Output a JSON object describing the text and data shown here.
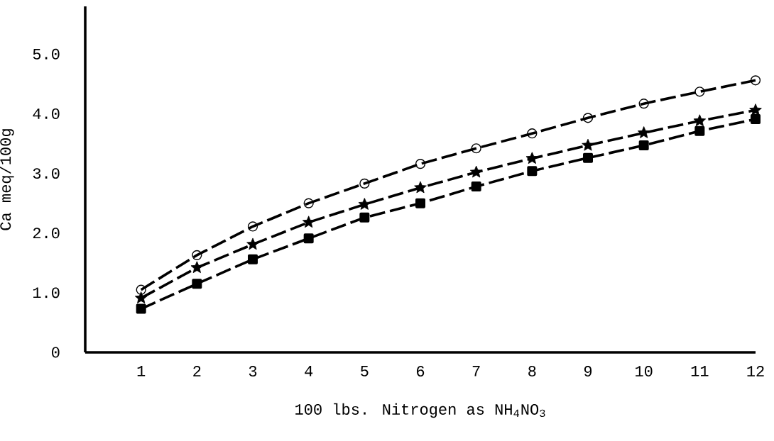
{
  "chart_data": {
    "type": "line",
    "xlabel": "100 lbs. Nitrogen as NH$_{4}$NO$_{3}$",
    "ylabel": "Ca meq/100g",
    "x": [
      1,
      2,
      3,
      4,
      5,
      6,
      7,
      8,
      9,
      10,
      11,
      12
    ],
    "xlim": [
      0,
      12
    ],
    "xticks": [
      1,
      2,
      3,
      4,
      5,
      6,
      7,
      8,
      9,
      10,
      11,
      12
    ],
    "ylim": [
      0,
      5.8
    ],
    "yticks": [
      0,
      {
        "value": 1,
        "label": "1.0"
      },
      {
        "value": 2,
        "label": "2.0"
      },
      {
        "value": 3,
        "label": "3.0"
      },
      {
        "value": 4,
        "label": "4.0"
      },
      {
        "value": 5,
        "label": "5.0"
      }
    ],
    "line_style": "dashed",
    "series": [
      {
        "color": "#000000",
        "marker": "circle",
        "values": [
          1.05,
          1.63,
          2.11,
          2.5,
          2.83,
          3.16,
          3.42,
          3.67,
          3.93,
          4.17,
          4.37,
          4.56
        ]
      },
      {
        "color": "#000000",
        "marker": "star",
        "values": [
          0.91,
          1.42,
          1.81,
          2.18,
          2.48,
          2.76,
          3.02,
          3.25,
          3.47,
          3.68,
          3.88,
          4.06
        ]
      },
      {
        "color": "#000000",
        "marker": "square",
        "values": [
          0.73,
          1.15,
          1.56,
          1.91,
          2.26,
          2.5,
          2.78,
          3.04,
          3.26,
          3.47,
          3.71,
          3.91
        ]
      }
    ]
  }
}
